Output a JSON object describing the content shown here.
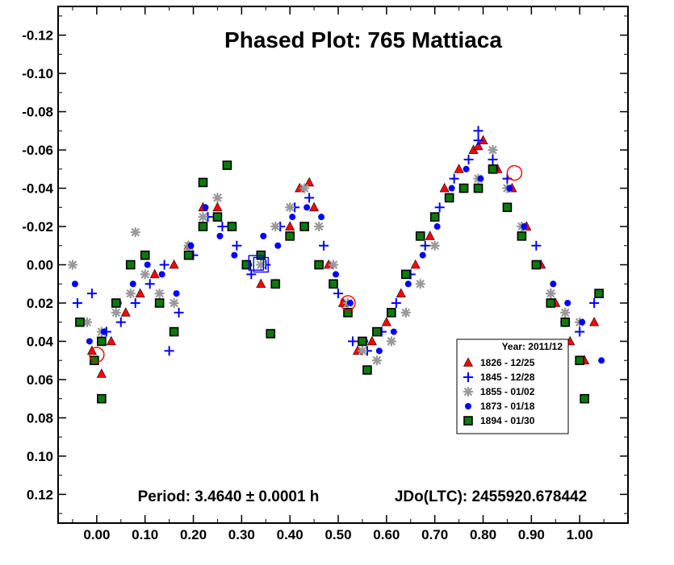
{
  "chart_data": {
    "type": "scatter",
    "title": "Phased Plot: 765 Mattiaca",
    "footer_period": "Period: 3.4640 ± 0.0001 h",
    "footer_epoch": "JDo(LTC): 2455920.678442",
    "xlim": [
      -0.08,
      1.1
    ],
    "ylim": [
      -0.135,
      0.135
    ],
    "y_inverted": true,
    "x_ticks": [
      "0.00",
      "0.10",
      "0.20",
      "0.30",
      "0.40",
      "0.50",
      "0.60",
      "0.70",
      "0.80",
      "0.90",
      "1.00"
    ],
    "x_tick_values": [
      0,
      0.1,
      0.2,
      0.3,
      0.4,
      0.5,
      0.6,
      0.7,
      0.8,
      0.9,
      1.0
    ],
    "y_ticks": [
      "-0.12",
      "-0.10",
      "-0.08",
      "-0.06",
      "-0.04",
      "-0.02",
      "0.00",
      "0.02",
      "0.04",
      "0.06",
      "0.08",
      "0.10",
      "0.12"
    ],
    "y_tick_values": [
      -0.12,
      -0.1,
      -0.08,
      -0.06,
      -0.04,
      -0.02,
      0,
      0.02,
      0.04,
      0.06,
      0.08,
      0.1,
      0.12
    ],
    "grid": false,
    "legend": {
      "title": "Year: 2011/12",
      "placement": "lower-right",
      "entries": [
        {
          "label": "1826 - 12/25",
          "marker": "triangle",
          "color": "#ff0000"
        },
        {
          "label": "1845 - 12/28",
          "marker": "plus",
          "color": "#0000ff"
        },
        {
          "label": "1855 - 01/02",
          "marker": "asterisk",
          "color": "#999999"
        },
        {
          "label": "1873 - 01/18",
          "marker": "circle",
          "color": "#0000ff"
        },
        {
          "label": "1894 - 01/30",
          "marker": "square",
          "color": "#008000"
        }
      ]
    },
    "series": [
      {
        "name": "1826 - 12/25",
        "marker": "triangle",
        "color": "#ff0000",
        "x": [
          -0.01,
          0.01,
          0.03,
          0.06,
          0.09,
          0.12,
          0.16,
          0.19,
          0.22,
          0.25,
          0.28,
          0.31,
          0.34,
          0.37,
          0.4,
          0.42,
          0.45,
          0.48,
          0.51,
          0.54,
          0.57,
          0.6,
          0.63,
          0.66,
          0.69,
          0.72,
          0.75,
          0.78,
          0.8,
          0.83,
          0.86,
          0.89,
          0.92,
          0.95,
          0.98,
          1.01,
          1.03,
          0.44,
          0.79
        ],
        "y": [
          0.045,
          0.057,
          0.04,
          0.025,
          0.015,
          0.005,
          0.0,
          -0.01,
          -0.03,
          -0.03,
          -0.02,
          0.0,
          0.01,
          0.01,
          -0.02,
          -0.04,
          -0.03,
          0.0,
          0.02,
          0.045,
          0.04,
          0.03,
          0.015,
          0.0,
          -0.015,
          -0.04,
          -0.05,
          -0.06,
          -0.065,
          -0.05,
          -0.04,
          -0.02,
          0.0,
          0.02,
          0.04,
          0.05,
          0.03,
          -0.043,
          -0.062
        ]
      },
      {
        "name": "1845 - 12/28",
        "marker": "plus",
        "color": "#0000ff",
        "x": [
          -0.04,
          -0.01,
          0.02,
          0.05,
          0.08,
          0.11,
          0.14,
          0.17,
          0.2,
          0.23,
          0.26,
          0.29,
          0.32,
          0.35,
          0.38,
          0.41,
          0.44,
          0.47,
          0.5,
          0.53,
          0.56,
          0.59,
          0.62,
          0.65,
          0.68,
          0.71,
          0.74,
          0.77,
          0.79,
          0.82,
          0.85,
          0.88,
          0.91,
          0.94,
          0.97,
          1.0,
          1.03,
          0.79,
          0.15
        ],
        "y": [
          0.02,
          0.015,
          0.035,
          0.03,
          0.02,
          0.01,
          0.0,
          0.025,
          -0.005,
          -0.025,
          -0.02,
          -0.01,
          0.005,
          0.0,
          -0.02,
          -0.03,
          -0.035,
          -0.01,
          0.015,
          0.04,
          0.045,
          0.035,
          0.02,
          0.005,
          -0.01,
          -0.03,
          -0.045,
          -0.055,
          -0.07,
          -0.055,
          -0.045,
          -0.02,
          -0.01,
          0.015,
          0.03,
          0.035,
          0.02,
          -0.065,
          0.045
        ]
      },
      {
        "name": "1855 - 01/02",
        "marker": "asterisk",
        "color": "#999999",
        "x": [
          -0.05,
          -0.02,
          0.01,
          0.04,
          0.07,
          0.1,
          0.13,
          0.16,
          0.19,
          0.22,
          0.25,
          0.28,
          0.31,
          0.34,
          0.37,
          0.4,
          0.43,
          0.46,
          0.49,
          0.52,
          0.55,
          0.58,
          0.61,
          0.64,
          0.67,
          0.7,
          0.73,
          0.76,
          0.79,
          0.82,
          0.85,
          0.88,
          0.91,
          0.94,
          0.97,
          1.0,
          0.08
        ],
        "y": [
          0.0,
          0.03,
          0.035,
          0.025,
          0.015,
          0.005,
          0.015,
          0.02,
          -0.01,
          -0.025,
          -0.035,
          -0.02,
          0.0,
          0.0,
          -0.02,
          -0.03,
          -0.04,
          -0.02,
          0.0,
          0.02,
          0.045,
          0.05,
          0.04,
          0.025,
          0.01,
          -0.01,
          -0.035,
          -0.04,
          -0.045,
          -0.06,
          -0.04,
          -0.02,
          0.0,
          0.015,
          0.025,
          0.03,
          -0.017
        ]
      },
      {
        "name": "1873 - 01/18",
        "marker": "circle",
        "color": "#0000ff",
        "x": [
          -0.045,
          -0.015,
          0.015,
          0.045,
          0.075,
          0.105,
          0.135,
          0.165,
          0.195,
          0.225,
          0.255,
          0.285,
          0.315,
          0.345,
          0.375,
          0.405,
          0.435,
          0.465,
          0.495,
          0.525,
          0.555,
          0.585,
          0.615,
          0.645,
          0.675,
          0.705,
          0.735,
          0.765,
          0.795,
          0.825,
          0.855,
          0.885,
          0.915,
          0.945,
          0.975,
          1.005,
          1.045
        ],
        "y": [
          0.01,
          0.04,
          0.035,
          0.02,
          0.01,
          0.0,
          0.005,
          0.015,
          -0.01,
          -0.03,
          -0.015,
          -0.005,
          0.0,
          -0.015,
          -0.01,
          -0.025,
          -0.03,
          -0.025,
          0.005,
          0.02,
          0.04,
          0.045,
          0.035,
          0.01,
          -0.005,
          -0.02,
          -0.04,
          -0.05,
          -0.045,
          -0.05,
          -0.04,
          -0.02,
          0.0,
          0.01,
          0.02,
          0.03,
          0.05
        ]
      },
      {
        "name": "1894 - 01/30",
        "marker": "square",
        "color": "#008000",
        "x": [
          -0.035,
          -0.005,
          0.01,
          0.04,
          0.07,
          0.1,
          0.13,
          0.16,
          0.19,
          0.22,
          0.25,
          0.28,
          0.31,
          0.34,
          0.37,
          0.4,
          0.43,
          0.46,
          0.49,
          0.52,
          0.55,
          0.58,
          0.61,
          0.64,
          0.67,
          0.7,
          0.73,
          0.76,
          0.79,
          0.82,
          0.85,
          0.88,
          0.91,
          0.94,
          0.97,
          1.0,
          1.04,
          0.27,
          0.22,
          0.56,
          0.01,
          1.01,
          0.36
        ],
        "y": [
          0.03,
          0.05,
          0.04,
          0.02,
          0.0,
          -0.005,
          0.02,
          0.035,
          -0.005,
          -0.02,
          -0.025,
          -0.02,
          0.0,
          -0.005,
          0.01,
          -0.015,
          -0.02,
          0.0,
          0.01,
          0.025,
          0.04,
          0.035,
          0.025,
          0.005,
          -0.015,
          -0.025,
          -0.035,
          -0.04,
          -0.04,
          -0.05,
          -0.03,
          -0.015,
          0.0,
          0.02,
          0.03,
          0.05,
          0.015,
          -0.052,
          -0.043,
          0.055,
          0.07,
          0.07,
          0.036
        ]
      },
      {
        "name": "",
        "marker": "open-circle",
        "color": "#ff0000",
        "x": [
          0.0,
          0.52,
          0.865
        ],
        "y": [
          0.047,
          0.02,
          -0.048
        ]
      },
      {
        "name": "",
        "marker": "open-square",
        "color": "#0000ff",
        "x": [
          0.33,
          0.34
        ],
        "y": [
          -0.001,
          0.0
        ]
      }
    ]
  }
}
